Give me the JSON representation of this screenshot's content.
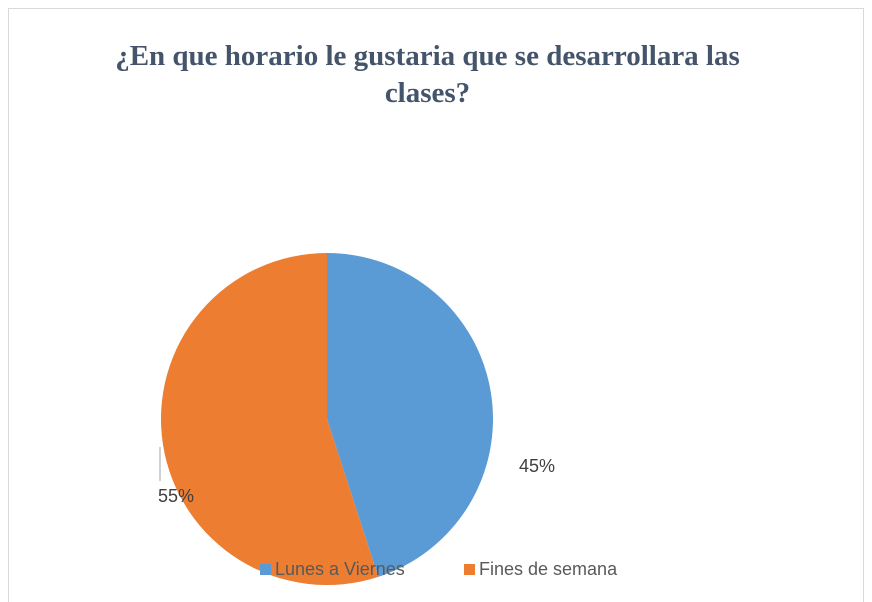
{
  "chart_data": {
    "type": "pie",
    "title": "¿En que horario le gustaria que se desarrollara las clases?",
    "categories": [
      "Lunes a Viernes",
      "Fines de semana"
    ],
    "values": [
      45,
      55
    ],
    "value_labels": [
      "45%",
      "55%"
    ],
    "colors": [
      "#5b9bd5",
      "#ed7d31"
    ],
    "legend": "bottom"
  }
}
